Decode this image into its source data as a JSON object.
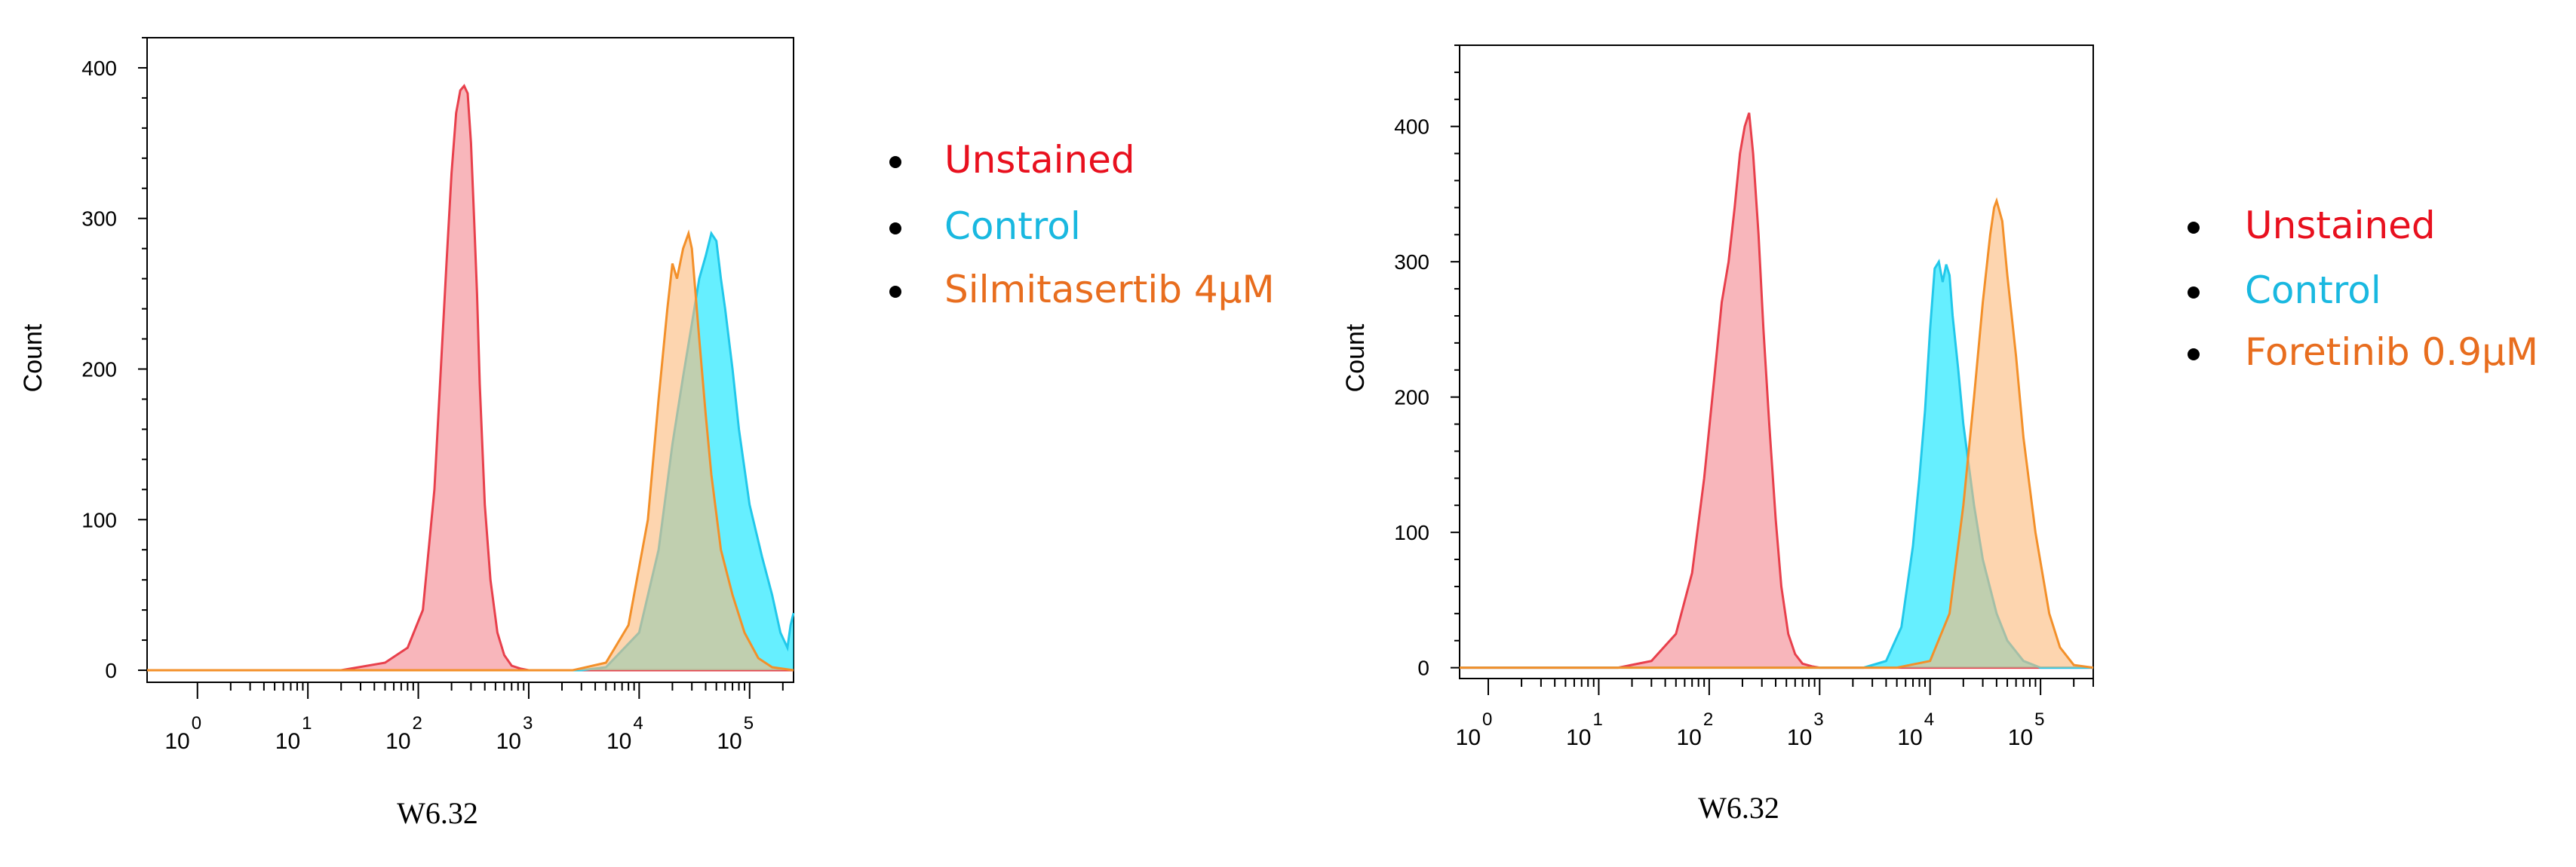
{
  "chart_data": [
    {
      "type": "area",
      "subtype": "flow-cytometry-histogram",
      "xlabel": "W6.32",
      "ylabel": "Count",
      "x_scale": "log",
      "x_ticks": [
        {
          "value": 1,
          "base": "10",
          "exp": "0"
        },
        {
          "value": 10,
          "base": "10",
          "exp": "1"
        },
        {
          "value": 100,
          "base": "10",
          "exp": "2"
        },
        {
          "value": 1000,
          "base": "10",
          "exp": "3"
        },
        {
          "value": 10000,
          "base": "10",
          "exp": "4"
        },
        {
          "value": 100000,
          "base": "10",
          "exp": "5"
        }
      ],
      "xlim": [
        0.35,
        250000
      ],
      "ylim": [
        -8,
        420
      ],
      "y_ticks": [
        {
          "value": 0,
          "label": "0"
        },
        {
          "value": 100,
          "label": "100"
        },
        {
          "value": 200,
          "label": "200"
        },
        {
          "value": 300,
          "label": "300"
        },
        {
          "value": 400,
          "label": "400"
        }
      ],
      "legend_position": "right",
      "grid": false,
      "series": [
        {
          "name": "Unstained",
          "fill": "#f4868d",
          "stroke": "#e8404c",
          "x": [
            0.35,
            20,
            50,
            80,
            110,
            140,
            160,
            180,
            200,
            220,
            240,
            260,
            280,
            300,
            320,
            340,
            360,
            400,
            450,
            520,
            600,
            700,
            850,
            1000,
            1500,
            250000
          ],
          "y": [
            0,
            0,
            5,
            15,
            40,
            120,
            200,
            270,
            330,
            370,
            385,
            388,
            383,
            350,
            300,
            250,
            190,
            110,
            60,
            25,
            10,
            3,
            1,
            0,
            0,
            0
          ]
        },
        {
          "name": "Control",
          "fill": "#00e5ff",
          "stroke": "#22c8ea",
          "x": [
            0.35,
            3000,
            5000,
            10000,
            15000,
            20000,
            25000,
            30000,
            35000,
            40000,
            45000,
            50000,
            55000,
            60000,
            70000,
            80000,
            100000,
            130000,
            160000,
            190000,
            220000,
            235000,
            250000
          ],
          "y": [
            0,
            0,
            2,
            25,
            80,
            150,
            195,
            230,
            260,
            275,
            290,
            285,
            260,
            240,
            200,
            160,
            110,
            75,
            50,
            25,
            15,
            30,
            38
          ]
        },
        {
          "name": "Silmitasertib 4µM",
          "fill": "#fbb97a",
          "stroke": "#f3902a",
          "x": [
            0.35,
            2500,
            5000,
            8000,
            12000,
            15000,
            18000,
            20000,
            22000,
            25000,
            28000,
            30000,
            35000,
            40000,
            45000,
            55000,
            70000,
            90000,
            120000,
            160000,
            250000
          ],
          "y": [
            0,
            0,
            5,
            30,
            100,
            180,
            240,
            270,
            260,
            280,
            290,
            280,
            220,
            170,
            130,
            80,
            50,
            25,
            8,
            2,
            0
          ]
        }
      ]
    },
    {
      "type": "area",
      "subtype": "flow-cytometry-histogram",
      "xlabel": "W6.32",
      "ylabel": "Count",
      "x_scale": "log",
      "x_ticks": [
        {
          "value": 1,
          "base": "10",
          "exp": "0"
        },
        {
          "value": 10,
          "base": "10",
          "exp": "1"
        },
        {
          "value": 100,
          "base": "10",
          "exp": "2"
        },
        {
          "value": 1000,
          "base": "10",
          "exp": "3"
        },
        {
          "value": 10000,
          "base": "10",
          "exp": "4"
        },
        {
          "value": 100000,
          "base": "10",
          "exp": "5"
        }
      ],
      "xlim": [
        0.55,
        300000
      ],
      "ylim": [
        -8,
        460
      ],
      "y_ticks": [
        {
          "value": 0,
          "label": "0"
        },
        {
          "value": 100,
          "label": "100"
        },
        {
          "value": 200,
          "label": "200"
        },
        {
          "value": 300,
          "label": "300"
        },
        {
          "value": 400,
          "label": "400"
        }
      ],
      "legend_position": "right",
      "grid": false,
      "series": [
        {
          "name": "Unstained",
          "fill": "#f4868d",
          "stroke": "#e8404c",
          "x": [
            0.55,
            15,
            30,
            50,
            70,
            90,
            110,
            130,
            150,
            170,
            190,
            210,
            230,
            250,
            280,
            310,
            350,
            400,
            450,
            520,
            600,
            700,
            850,
            1000,
            300000
          ],
          "y": [
            0,
            0,
            5,
            25,
            70,
            140,
            210,
            270,
            300,
            340,
            380,
            400,
            410,
            380,
            320,
            250,
            180,
            110,
            60,
            25,
            10,
            3,
            1,
            0,
            0
          ]
        },
        {
          "name": "Control",
          "fill": "#00e5ff",
          "stroke": "#22c8ea",
          "x": [
            0.55,
            2500,
            4000,
            5500,
            7000,
            8000,
            9000,
            10000,
            11000,
            12000,
            13000,
            14000,
            15000,
            16000,
            18000,
            20000,
            25000,
            30000,
            40000,
            50000,
            70000,
            100000,
            300000
          ],
          "y": [
            0,
            0,
            5,
            30,
            90,
            140,
            190,
            250,
            295,
            300,
            285,
            298,
            290,
            260,
            220,
            180,
            120,
            80,
            40,
            20,
            5,
            0,
            0
          ]
        },
        {
          "name": "Foretinib 0.9µM",
          "fill": "#fbb97a",
          "stroke": "#f3902a",
          "x": [
            0.55,
            5000,
            10000,
            15000,
            20000,
            25000,
            30000,
            35000,
            38000,
            40000,
            45000,
            50000,
            60000,
            70000,
            90000,
            120000,
            150000,
            200000,
            300000
          ],
          "y": [
            0,
            0,
            5,
            40,
            120,
            200,
            270,
            320,
            340,
            345,
            330,
            290,
            230,
            170,
            100,
            40,
            15,
            2,
            0
          ]
        }
      ]
    }
  ],
  "legends": [
    {
      "items": [
        {
          "label": "Unstained",
          "color": "#e8101e"
        },
        {
          "label": "Control",
          "color": "#19b8e0"
        },
        {
          "label": "Silmitasertib 4µM",
          "color": "#e86d1e"
        }
      ]
    },
    {
      "items": [
        {
          "label": "Unstained",
          "color": "#e8101e"
        },
        {
          "label": "Control",
          "color": "#19b8e0"
        },
        {
          "label": "Foretinib 0.9µM",
          "color": "#e86d1e"
        }
      ]
    }
  ]
}
